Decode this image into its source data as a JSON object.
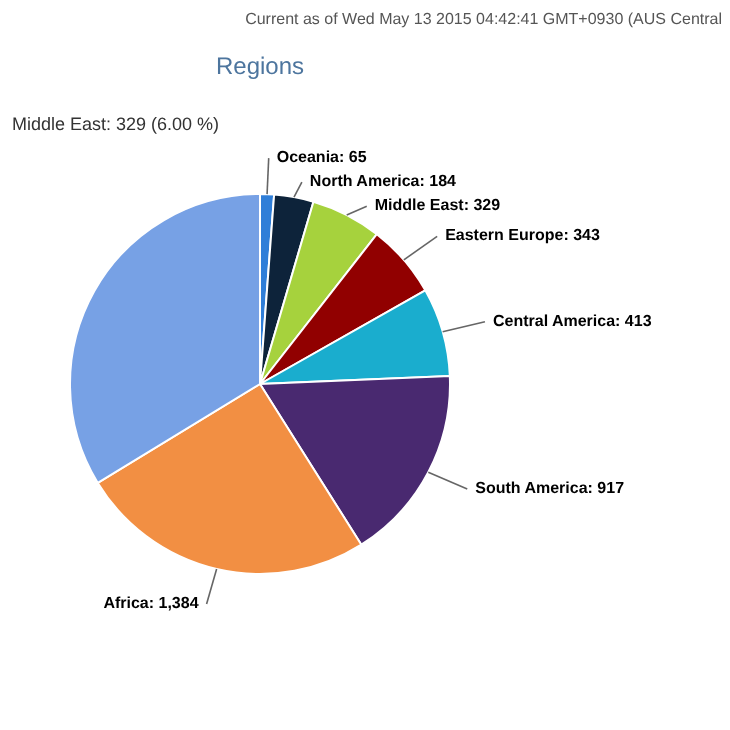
{
  "chart_data": {
    "type": "pie",
    "title": "Regions",
    "categories": [
      "Oceania",
      "North America",
      "Middle East",
      "Eastern Europe",
      "Central America",
      "South America",
      "Africa",
      null
    ],
    "values": [
      65,
      184,
      329,
      343,
      413,
      917,
      1384,
      1849
    ],
    "value_labels": [
      "65",
      "184",
      "329",
      "343",
      "413",
      "917",
      "1,384",
      null
    ],
    "colors": [
      "#2f7ed8",
      "#0d233a",
      "#a6d23d",
      "#910000",
      "#1aadce",
      "#492970",
      "#f28f43",
      "#77a1e5"
    ],
    "annotations": [
      "Current as of Wed May 13 2015 04:42:41 GMT+0930 (AUS Central",
      "Middle East: 329 (6.00 %)"
    ]
  }
}
